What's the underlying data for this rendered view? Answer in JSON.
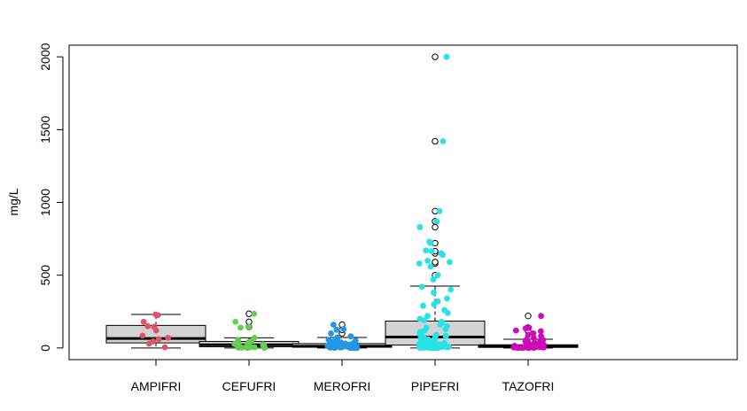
{
  "chart_data": {
    "type": "box",
    "title": "",
    "xlabel": "",
    "ylabel": "mg/L",
    "ylim": [
      -80,
      2080
    ],
    "y_ticks": [
      0,
      500,
      1000,
      1500,
      2000
    ],
    "y_tick_labels": [
      "0",
      "500",
      "1000",
      "1500",
      "2000"
    ],
    "grid": false,
    "legend": "none",
    "categories": [
      "AMPIFRI",
      "CEFUFRI",
      "MEROFRI",
      "PIPEFRI",
      "TAZOFRI"
    ],
    "box_fill": "#d3d3d3",
    "boxes": [
      {
        "name": "AMPIFRI",
        "min": 0,
        "q1": 35,
        "median": 65,
        "q3": 155,
        "max": 230,
        "outliers": []
      },
      {
        "name": "CEFUFRI",
        "min": 0,
        "q1": 8,
        "median": 22,
        "q3": 45,
        "max": 70,
        "outliers": [
          145,
          180,
          235
        ]
      },
      {
        "name": "MEROFRI",
        "min": 0,
        "q1": 5,
        "median": 12,
        "q3": 30,
        "max": 72,
        "outliers": [
          100,
          125,
          160
        ]
      },
      {
        "name": "PIPEFRI",
        "min": 0,
        "q1": 20,
        "median": 75,
        "q3": 185,
        "max": 425,
        "outliers": [
          500,
          580,
          590,
          650,
          665,
          720,
          830,
          870,
          940,
          1420,
          2000
        ]
      },
      {
        "name": "TAZOFRI",
        "min": 0,
        "q1": 4,
        "median": 12,
        "q3": 22,
        "max": 60,
        "outliers": [
          115,
          140,
          220
        ]
      }
    ],
    "points": [
      {
        "name": "AMPIFRI",
        "color": "#df536b",
        "values": [
          230,
          225,
          180,
          150,
          145,
          120,
          85,
          70,
          60,
          45,
          30,
          5
        ]
      },
      {
        "name": "CEFUFRI",
        "color": "#61d04f",
        "values": [
          235,
          180,
          145,
          140,
          70,
          55,
          45,
          40,
          30,
          28,
          25,
          20,
          18,
          15,
          12,
          10,
          8,
          6,
          5,
          3,
          2,
          1,
          0
        ]
      },
      {
        "name": "MEROFRI",
        "color": "#2297e6",
        "values": [
          160,
          130,
          125,
          100,
          80,
          72,
          60,
          55,
          50,
          45,
          40,
          38,
          35,
          30,
          28,
          25,
          22,
          20,
          18,
          16,
          15,
          14,
          12,
          11,
          10,
          9,
          8,
          7,
          6,
          5,
          5,
          4,
          4,
          3,
          3,
          2,
          2,
          1,
          1,
          0,
          0,
          0
        ]
      },
      {
        "name": "PIPEFRI",
        "color": "#28e2e5",
        "values": [
          2000,
          1420,
          940,
          870,
          830,
          730,
          720,
          670,
          665,
          650,
          640,
          600,
          590,
          580,
          560,
          500,
          470,
          420,
          400,
          380,
          340,
          320,
          300,
          290,
          260,
          240,
          220,
          200,
          190,
          180,
          170,
          160,
          150,
          140,
          130,
          120,
          110,
          100,
          95,
          90,
          85,
          80,
          75,
          70,
          65,
          60,
          55,
          50,
          45,
          40,
          38,
          35,
          32,
          30,
          28,
          25,
          22,
          20,
          18,
          16,
          15,
          14,
          12,
          11,
          10,
          9,
          8,
          7,
          6,
          5,
          5,
          4,
          4,
          3,
          3,
          2,
          2,
          1,
          1,
          0,
          0,
          0
        ]
      },
      {
        "name": "TAZOFRI",
        "color": "#cd0bbc",
        "values": [
          220,
          140,
          135,
          120,
          115,
          100,
          90,
          80,
          70,
          60,
          55,
          50,
          45,
          40,
          35,
          30,
          28,
          25,
          22,
          20,
          18,
          16,
          15,
          14,
          12,
          11,
          10,
          9,
          8,
          7,
          6,
          5,
          5,
          4,
          4,
          3,
          3,
          2,
          2,
          1,
          1,
          0,
          0,
          0
        ]
      }
    ]
  }
}
